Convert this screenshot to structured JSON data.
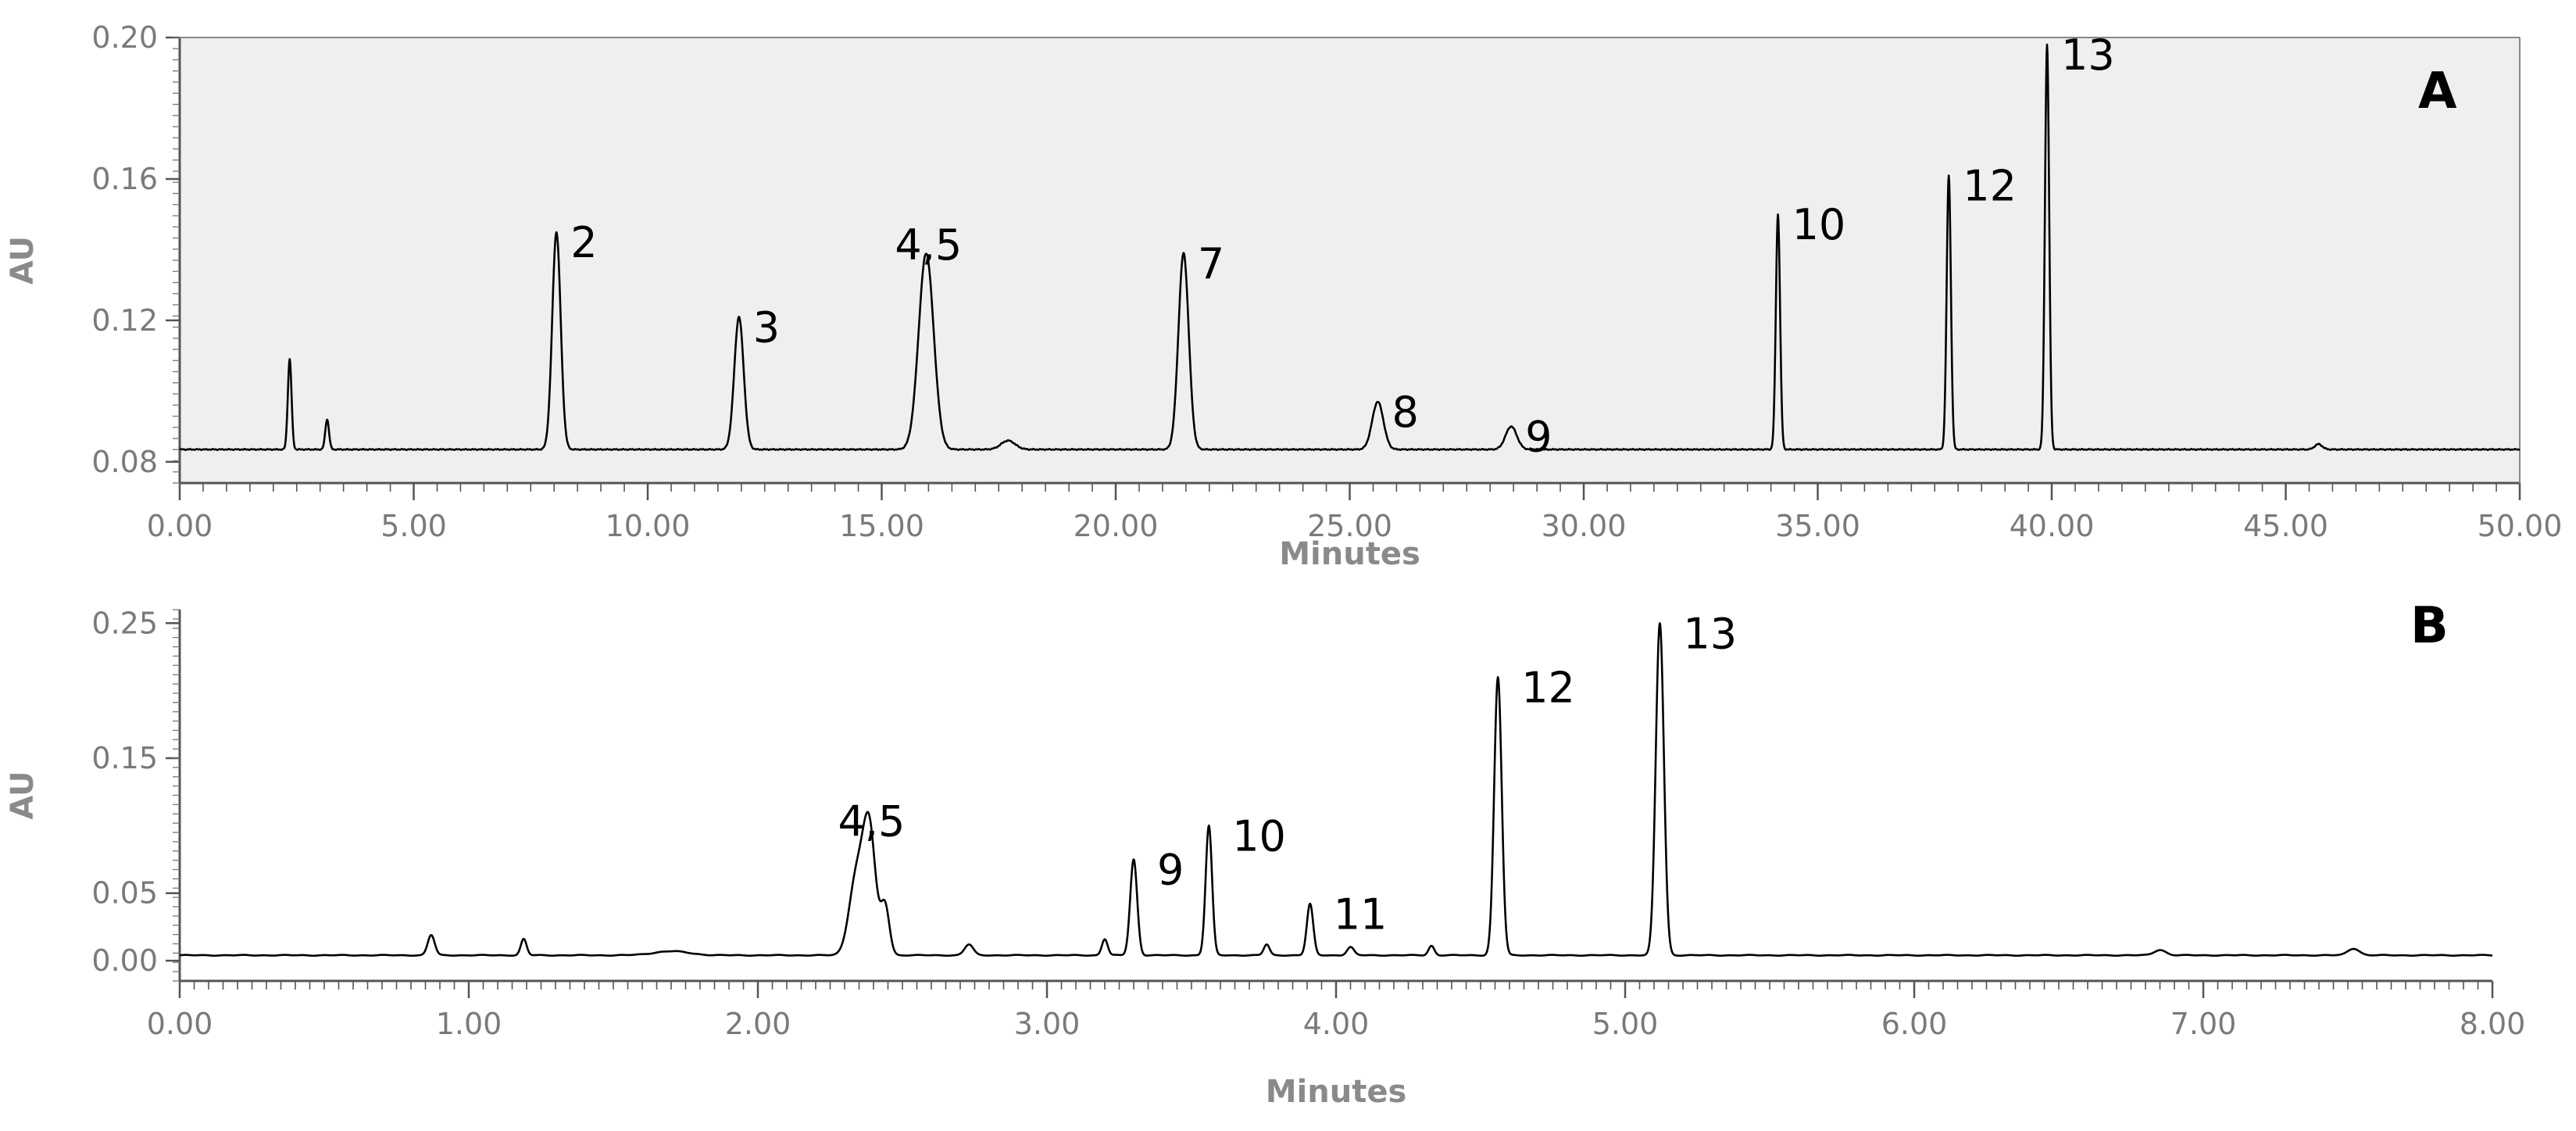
{
  "chart_data": [
    {
      "type": "line",
      "panel": "A",
      "xlabel": "Minutes",
      "ylabel": "AU",
      "xlim": [
        0,
        50
      ],
      "ylim": [
        0.074,
        0.2
      ],
      "x_ticks": [
        "0.00",
        "5.00",
        "10.00",
        "15.00",
        "20.00",
        "25.00",
        "30.00",
        "35.00",
        "40.00",
        "45.00",
        "50.00"
      ],
      "y_ticks": [
        "0.08",
        "0.12",
        "0.16",
        "0.20"
      ],
      "y_tick_values": [
        0.08,
        0.12,
        0.16,
        0.2
      ],
      "baseline": 0.0835,
      "grid": false,
      "plot_background": "#efefef",
      "line_color": "#000000",
      "peaks": [
        {
          "x": 2.35,
          "y": 0.109,
          "w": 0.04
        },
        {
          "x": 3.15,
          "y": 0.092,
          "w": 0.04
        },
        {
          "x": 8.05,
          "y": 0.145,
          "w": 0.09
        },
        {
          "x": 11.95,
          "y": 0.121,
          "w": 0.1
        },
        {
          "x": 15.95,
          "y": 0.139,
          "w": 0.16
        },
        {
          "x": 17.7,
          "y": 0.086,
          "w": 0.15
        },
        {
          "x": 21.45,
          "y": 0.139,
          "w": 0.11
        },
        {
          "x": 25.6,
          "y": 0.097,
          "w": 0.12
        },
        {
          "x": 28.45,
          "y": 0.09,
          "w": 0.12
        },
        {
          "x": 34.15,
          "y": 0.15,
          "w": 0.045
        },
        {
          "x": 37.8,
          "y": 0.161,
          "w": 0.045
        },
        {
          "x": 39.9,
          "y": 0.198,
          "w": 0.045
        },
        {
          "x": 45.7,
          "y": 0.085,
          "w": 0.08
        }
      ],
      "peak_labels": [
        {
          "text": "2",
          "x": 8.05,
          "y": 0.145
        },
        {
          "text": "3",
          "x": 11.95,
          "y": 0.121
        },
        {
          "text": "4,5",
          "x": 15.95,
          "y": 0.139
        },
        {
          "text": "7",
          "x": 21.45,
          "y": 0.139
        },
        {
          "text": "8",
          "x": 25.6,
          "y": 0.097
        },
        {
          "text": "9",
          "x": 28.45,
          "y": 0.09
        },
        {
          "text": "10",
          "x": 34.15,
          "y": 0.15
        },
        {
          "text": "12",
          "x": 37.8,
          "y": 0.161
        },
        {
          "text": "13",
          "x": 39.9,
          "y": 0.198
        }
      ]
    },
    {
      "type": "line",
      "panel": "B",
      "xlabel": "Minutes",
      "ylabel": "AU",
      "xlim": [
        0,
        8
      ],
      "ylim": [
        -0.015,
        0.26
      ],
      "x_ticks": [
        "0.00",
        "1.00",
        "2.00",
        "3.00",
        "4.00",
        "5.00",
        "6.00",
        "7.00",
        "8.00"
      ],
      "y_ticks": [
        "0.00",
        "0.05",
        "0.15",
        "0.25"
      ],
      "y_tick_values": [
        0.0,
        0.05,
        0.15,
        0.25
      ],
      "baseline": 0.004,
      "grid": false,
      "plot_background": "#ffffff",
      "line_color": "#000000",
      "peaks": [
        {
          "x": 0.87,
          "y": 0.019,
          "w": 0.012
        },
        {
          "x": 1.19,
          "y": 0.016,
          "w": 0.01
        },
        {
          "x": 1.7,
          "y": 0.007,
          "w": 0.06
        },
        {
          "x": 2.34,
          "y": 0.06,
          "w": 0.025
        },
        {
          "x": 2.385,
          "y": 0.097,
          "w": 0.022
        },
        {
          "x": 2.44,
          "y": 0.04,
          "w": 0.015
        },
        {
          "x": 2.73,
          "y": 0.012,
          "w": 0.015
        },
        {
          "x": 3.2,
          "y": 0.016,
          "w": 0.01
        },
        {
          "x": 3.3,
          "y": 0.075,
          "w": 0.012
        },
        {
          "x": 3.56,
          "y": 0.1,
          "w": 0.011
        },
        {
          "x": 3.76,
          "y": 0.012,
          "w": 0.01
        },
        {
          "x": 3.91,
          "y": 0.042,
          "w": 0.011
        },
        {
          "x": 4.05,
          "y": 0.01,
          "w": 0.012
        },
        {
          "x": 4.33,
          "y": 0.011,
          "w": 0.01
        },
        {
          "x": 4.56,
          "y": 0.21,
          "w": 0.013
        },
        {
          "x": 5.12,
          "y": 0.25,
          "w": 0.014
        },
        {
          "x": 6.85,
          "y": 0.008,
          "w": 0.02
        },
        {
          "x": 7.52,
          "y": 0.009,
          "w": 0.02
        }
      ],
      "peak_labels": [
        {
          "text": "4,5",
          "x": 2.385,
          "y": 0.097
        },
        {
          "text": "9",
          "x": 3.3,
          "y": 0.075
        },
        {
          "text": "10",
          "x": 3.56,
          "y": 0.1
        },
        {
          "text": "11",
          "x": 3.91,
          "y": 0.042
        },
        {
          "text": "12",
          "x": 4.56,
          "y": 0.21
        },
        {
          "text": "13",
          "x": 5.12,
          "y": 0.25
        }
      ]
    }
  ]
}
